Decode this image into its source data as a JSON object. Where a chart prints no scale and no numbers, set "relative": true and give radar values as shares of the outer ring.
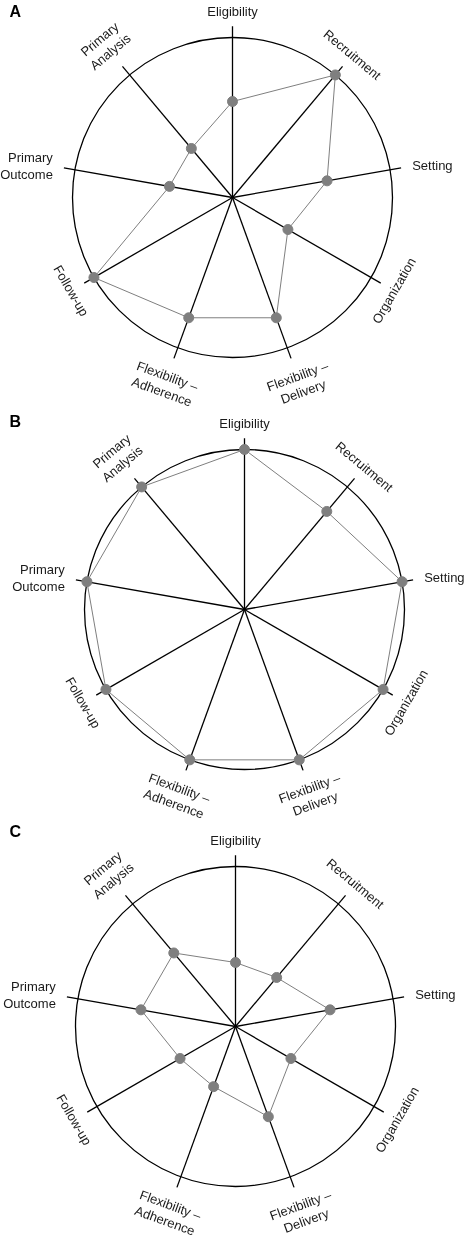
{
  "chart_data": [
    {
      "type": "radar",
      "title": "A",
      "categories": [
        "Eligibility",
        "Recruitment",
        "Setting",
        "Organization",
        "Flexibility – Delivery",
        "Flexibility – Adherence",
        "Follow-up",
        "Primary Outcome",
        "Primary Analysis"
      ],
      "relative": true,
      "grid": true,
      "marker": "circle",
      "series": [
        {
          "color": "#7f7f7f",
          "values": [
            0.6,
            1,
            0.6,
            0.4,
            0.8,
            0.8,
            1,
            0.4,
            0.4
          ]
        }
      ]
    },
    {
      "type": "radar",
      "title": "B",
      "categories": [
        "Eligibility",
        "Recruitment",
        "Setting",
        "Organization",
        "Flexibility – Delivery",
        "Flexibility – Adherence",
        "Follow-up",
        "Primary Outcome",
        "Primary Analysis"
      ],
      "relative": true,
      "grid": true,
      "marker": "circle",
      "series": [
        {
          "color": "#7f7f7f",
          "values": [
            1,
            0.8,
            1,
            1,
            1,
            1,
            1,
            1,
            1
          ]
        }
      ]
    },
    {
      "type": "radar",
      "title": "C",
      "categories": [
        "Eligibility",
        "Recruitment",
        "Setting",
        "Organization",
        "Flexibility – Delivery",
        "Flexibility – Adherence",
        "Follow-up",
        "Primary Outcome",
        "Primary Analysis"
      ],
      "relative": true,
      "grid": true,
      "marker": "circle",
      "series": [
        {
          "color": "#7f7f7f",
          "values": [
            0.4,
            0.4,
            0.6,
            0.4,
            0.6,
            0.4,
            0.4,
            0.6,
            0.6
          ]
        }
      ]
    }
  ]
}
